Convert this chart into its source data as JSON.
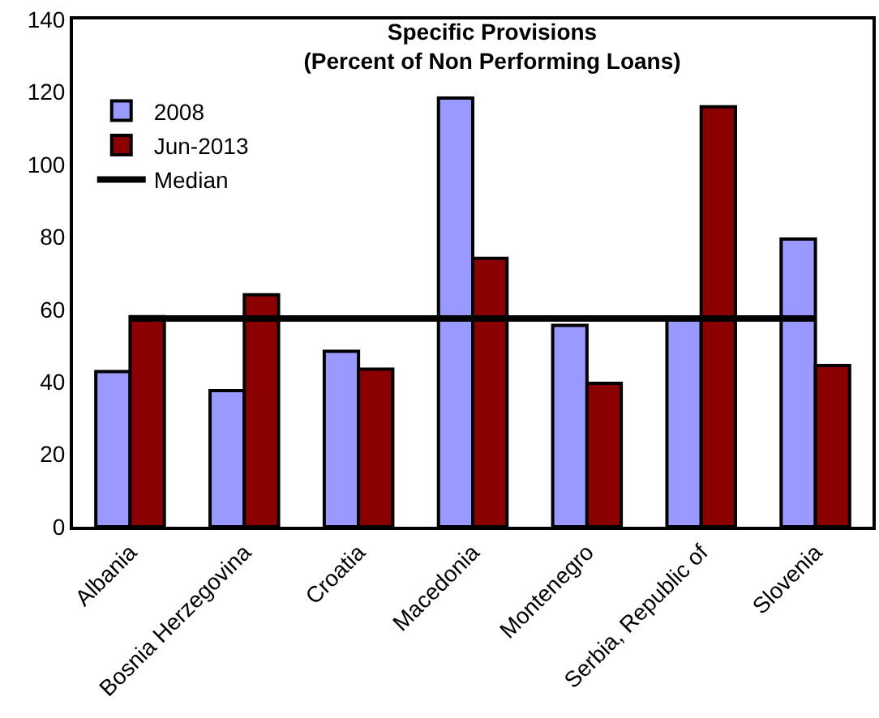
{
  "chart_data": {
    "type": "bar",
    "title": "Specific Provisions\n(Percent of Non Performing Loans)",
    "categories": [
      "Albania",
      "Bosnia Herzegovina",
      "Croatia",
      "Macedonia",
      "Montenegro",
      "Serbia, Republic of",
      "Slovenia"
    ],
    "series": [
      {
        "name": "2008",
        "color": "#9999ff",
        "values": [
          42.8,
          37.6,
          48.4,
          118.3,
          55.6,
          57,
          79.4
        ]
      },
      {
        "name": "Jun-2013",
        "color": "#8b0000",
        "values": [
          58,
          64,
          43.5,
          74.1,
          39.6,
          115.9,
          44.5
        ]
      },
      {
        "name": "Median",
        "type": "line",
        "color": "#000000",
        "values": [
          57.5,
          57.5,
          57.5,
          57.5,
          57.5,
          57.5,
          57.5
        ]
      }
    ],
    "ylim": [
      0,
      140
    ],
    "yticks": [
      0,
      20,
      40,
      60,
      80,
      100,
      120,
      140
    ],
    "legend": "top left",
    "marker": "none",
    "line_style": "solid"
  }
}
